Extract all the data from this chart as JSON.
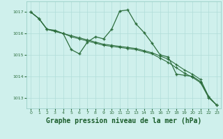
{
  "background_color": "#cff0ec",
  "grid_color": "#b0ddd8",
  "line_color": "#2d6e3e",
  "xlabel": "Graphe pression niveau de la mer (hPa)",
  "xlabel_fontsize": 7,
  "xlabel_color": "#1a5c2a",
  "ylim": [
    1012.5,
    1017.5
  ],
  "yticks": [
    1013,
    1014,
    1015,
    1016,
    1017
  ],
  "xticks": [
    0,
    1,
    2,
    3,
    4,
    5,
    6,
    7,
    8,
    9,
    10,
    11,
    12,
    13,
    14,
    15,
    16,
    17,
    18,
    19,
    20,
    21,
    22,
    23
  ],
  "s1": [
    1017.0,
    1016.7,
    1016.2,
    1016.15,
    1016.0,
    1015.25,
    1015.05,
    1015.6,
    1015.85,
    1015.75,
    1016.2,
    1017.05,
    1017.1,
    1016.45,
    1016.05,
    1015.55,
    1015.0,
    1014.9,
    1014.1,
    1014.05,
    1014.0,
    1013.75,
    1013.05,
    1012.65
  ],
  "s2": [
    1017.0,
    1016.7,
    1016.2,
    1016.1,
    1016.0,
    1015.9,
    1015.8,
    1015.7,
    1015.6,
    1015.5,
    1015.45,
    1015.4,
    1015.35,
    1015.3,
    1015.2,
    1015.1,
    1014.95,
    1014.8,
    1014.55,
    1014.3,
    1014.1,
    1013.85,
    1013.05,
    1012.65
  ],
  "s3": [
    1017.0,
    1016.7,
    1016.2,
    1016.1,
    1016.0,
    1015.85,
    1015.75,
    1015.65,
    1015.55,
    1015.45,
    1015.4,
    1015.35,
    1015.3,
    1015.25,
    1015.15,
    1015.05,
    1014.85,
    1014.65,
    1014.4,
    1014.15,
    1013.95,
    1013.7,
    1013.0,
    1012.65
  ]
}
